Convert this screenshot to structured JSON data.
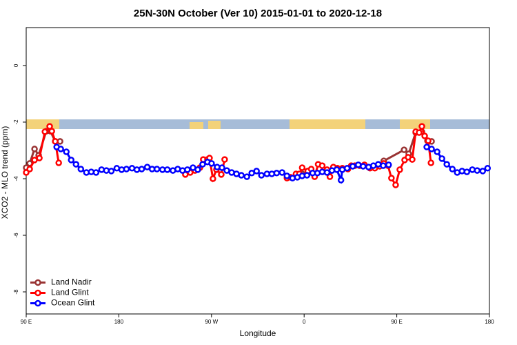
{
  "chart_data": {
    "type": "line",
    "title": "25N-30N October (Ver 10)   2015-01-01 to 2020-12-18",
    "x_label": "Longitude",
    "y_label": "XCO2 - MLO trend (ppm)",
    "xlim": [
      90,
      540
    ],
    "xticks": [
      {
        "value": 90,
        "label": "90 E"
      },
      {
        "value": 180,
        "label": "180"
      },
      {
        "value": 270,
        "label": "90 W"
      },
      {
        "value": 360,
        "label": "0"
      },
      {
        "value": 450,
        "label": "90 E"
      },
      {
        "value": 540,
        "label": "180"
      }
    ],
    "ylim": [
      -8.78,
      1.34
    ],
    "yticks": [
      0,
      -2,
      -4,
      -6,
      -8
    ],
    "legend": "bottomleft",
    "series": [
      {
        "name": "Land Nadir",
        "color": "#993333",
        "x": [
          90,
          93.4,
          98.1,
          102.1,
          109.5,
          113.5,
          118.2,
          122.9,
          null,
          358.1,
          null,
          437.4,
          457.1,
          461.6,
          468.4,
          474.4,
          479.8,
          483.8
        ],
        "values": [
          -3.61,
          -3.46,
          -2.95,
          -3.17,
          -2.32,
          -2.32,
          -2.68,
          -2.68,
          null,
          -3.83,
          null,
          -3.37,
          -2.98,
          -3.12,
          -2.37,
          -2.34,
          -2.66,
          -2.68
        ]
      },
      {
        "name": "Land Glint",
        "color": "#ff0000",
        "x": [
          90,
          93.4,
          98.1,
          102.8,
          108.2,
          112.8,
          114.9,
          118.2,
          121.6,
          null,
          244.6,
          249.3,
          254,
          258.7,
          262,
          266.1,
          268.1,
          271.4,
          274.8,
          279.5,
          282.8,
          null,
          343.3,
          346.7,
          352.1,
          355.4,
          358.1,
          363.5,
          366.9,
          370.2,
          373.6,
          377.6,
          382.3,
          385,
          388.4,
          392.4,
          397.1,
          402.5,
          405.8,
          409.2,
          413.9,
          418.6,
          424,
          428.7,
          433.4,
          437.4,
          441.5,
          444.8,
          448.9,
          452.9,
          457.6,
          461,
          465,
          468.4,
          471.7,
          474.4,
          477.1,
          480.5,
          483.2
        ],
        "values": [
          -3.78,
          -3.66,
          -3.34,
          -3.27,
          -2.34,
          -2.15,
          -2.32,
          -2.68,
          -3.44,
          null,
          -3.85,
          -3.78,
          -3.71,
          -3.61,
          -3.32,
          -3.32,
          -3.27,
          -4,
          -3.68,
          -3.85,
          -3.32,
          null,
          -3.98,
          -3.95,
          -3.83,
          -3.83,
          -3.61,
          -3.73,
          -3.66,
          -3.93,
          -3.49,
          -3.54,
          -3.68,
          -3.93,
          -3.59,
          -3.63,
          -3.63,
          -3.66,
          -3.54,
          -3.54,
          -3.54,
          -3.51,
          -3.63,
          -3.63,
          -3.56,
          -3.46,
          -3.54,
          -3.98,
          -4.22,
          -3.68,
          -3.34,
          -3.24,
          -3.32,
          -2.34,
          -2.37,
          -2.15,
          -2.49,
          -2.66,
          -3.44
        ]
      },
      {
        "name": "Ocean Glint",
        "color": "#0000ff",
        "x": [
          119.6,
          123.6,
          129,
          133.7,
          138.4,
          143.1,
          148.5,
          153.2,
          157.9,
          163.2,
          167.9,
          172.7,
          178,
          182.7,
          187.4,
          192.8,
          197.5,
          202.2,
          207.6,
          212.3,
          217,
          222.4,
          227.1,
          232.5,
          237.2,
          241.9,
          246.6,
          252,
          256.7,
          261.4,
          266.1,
          270.1,
          275.5,
          280.2,
          284.9,
          289.6,
          294.3,
          299,
          304.4,
          309.1,
          313.8,
          318.5,
          323.9,
          328.6,
          333.3,
          338.6,
          343.3,
          348.7,
          353.4,
          358.1,
          362.8,
          368.2,
          372.9,
          377.6,
          382.3,
          387,
          391.7,
          395.8,
          397.1,
          401.8,
          407.2,
          412.6,
          417.3,
          422.6,
          427.3,
          432,
          436.8,
          442.1,
          null,
          479.1,
          483.8,
          489.2,
          493.9,
          498.6,
          504,
          508.7,
          513.4,
          518.1,
          523.4,
          528.1,
          533.5,
          538.2
        ],
        "values": [
          -2.88,
          -2.95,
          -3.05,
          -3.34,
          -3.49,
          -3.66,
          -3.78,
          -3.76,
          -3.78,
          -3.68,
          -3.71,
          -3.73,
          -3.63,
          -3.68,
          -3.66,
          -3.63,
          -3.68,
          -3.66,
          -3.59,
          -3.66,
          -3.66,
          -3.68,
          -3.68,
          -3.71,
          -3.66,
          -3.71,
          -3.68,
          -3.61,
          -3.68,
          -3.49,
          -3.41,
          -3.46,
          -3.59,
          -3.61,
          -3.71,
          -3.78,
          -3.83,
          -3.88,
          -3.93,
          -3.8,
          -3.73,
          -3.88,
          -3.83,
          -3.83,
          -3.8,
          -3.78,
          -3.9,
          -3.98,
          -3.95,
          -3.9,
          -3.88,
          -3.8,
          -3.8,
          -3.76,
          -3.78,
          -3.71,
          -3.68,
          -4.05,
          -3.68,
          -3.63,
          -3.56,
          -3.51,
          -3.56,
          -3.59,
          -3.54,
          -3.49,
          -3.54,
          -3.51,
          null,
          -2.88,
          -2.95,
          -3.05,
          -3.29,
          -3.49,
          -3.66,
          -3.78,
          -3.73,
          -3.76,
          -3.68,
          -3.71,
          -3.73,
          -3.63
        ]
      }
    ]
  }
}
